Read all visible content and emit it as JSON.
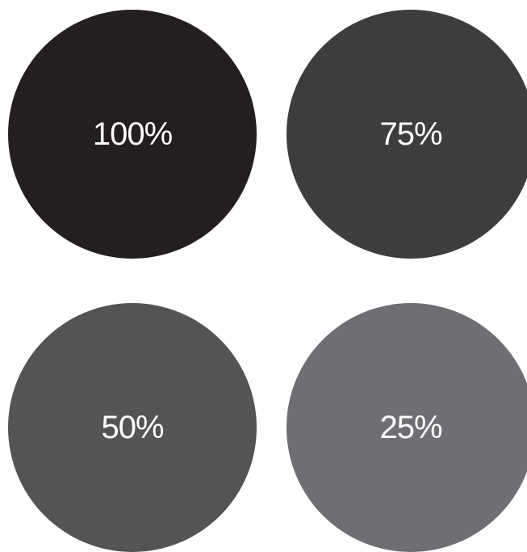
{
  "swatches": [
    {
      "label": "100%",
      "color": "#231f20"
    },
    {
      "label": "75%",
      "color": "#3d3d3e"
    },
    {
      "label": "50%",
      "color": "#545455"
    },
    {
      "label": "25%",
      "color": "#6e6f72"
    }
  ]
}
